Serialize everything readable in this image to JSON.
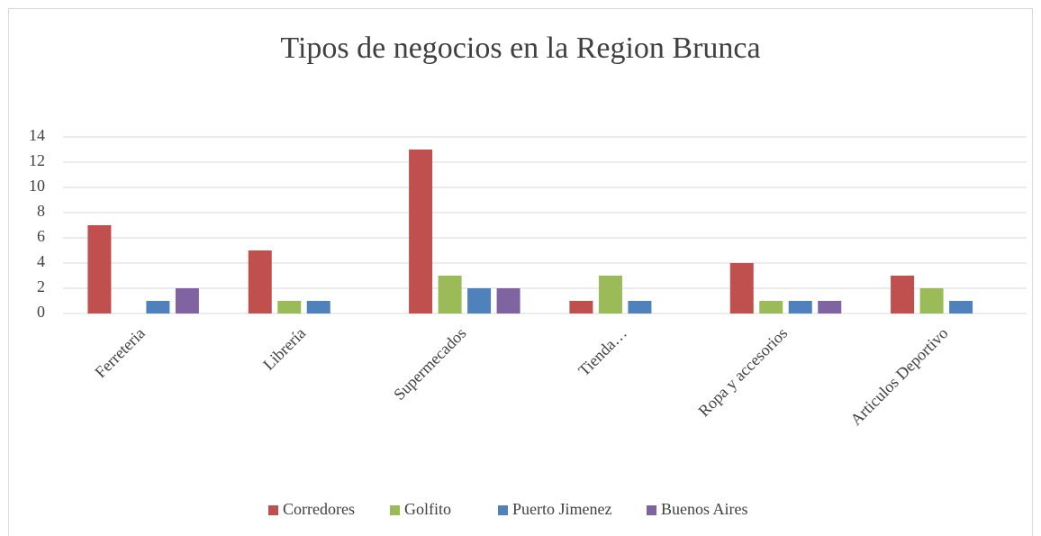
{
  "chart_data": {
    "type": "bar",
    "title": "Tipos de negocios en la Region Brunca",
    "categories": [
      "Ferreteria",
      "Librería",
      "Supermecados",
      "Tienda…",
      "Ropa y accesorios",
      "Articulos Deportivo"
    ],
    "series": [
      {
        "name": "Corredores",
        "color": "#c0504d",
        "values": [
          7,
          5,
          13,
          1,
          4,
          3
        ]
      },
      {
        "name": "Golfito",
        "color": "#9bbb59",
        "values": [
          0,
          1,
          3,
          3,
          1,
          2
        ]
      },
      {
        "name": "Puerto Jimenez",
        "color": "#4f81bd",
        "values": [
          1,
          1,
          2,
          1,
          1,
          1
        ]
      },
      {
        "name": "Buenos Aires",
        "color": "#8064a2",
        "values": [
          2,
          0,
          2,
          0,
          1,
          0
        ]
      }
    ],
    "ylim": [
      0,
      14
    ],
    "yticks": [
      0,
      2,
      4,
      6,
      8,
      10,
      12,
      14
    ],
    "grid": true,
    "legend": "bottom"
  }
}
